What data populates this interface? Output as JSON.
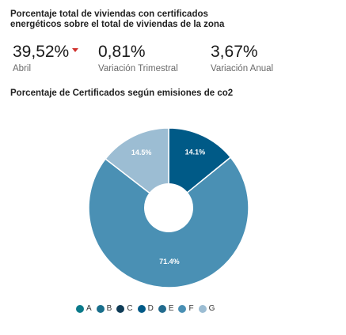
{
  "header": {
    "title": "Porcentaje total de viviendas con certificados energéticos sobre el total de viviendas de la zona"
  },
  "kpis": [
    {
      "value": "39,52%",
      "label": "Abril",
      "trend": "down"
    },
    {
      "value": "0,81%",
      "label": "Variación Trimestral"
    },
    {
      "value": "3,67%",
      "label": "Variación Anual"
    }
  ],
  "colors": {
    "A": "#0b7a8a",
    "B": "#1a6f8c",
    "C": "#0f3c57",
    "D": "#005a87",
    "E": "#226b8e",
    "F": "#4a90b4",
    "G": "#9cbdd3"
  },
  "chart_data": {
    "type": "pie",
    "title": "Porcentaje de Certificados según emisiones de co2",
    "donut": true,
    "slices": [
      {
        "name": "A",
        "value": 0
      },
      {
        "name": "B",
        "value": 0
      },
      {
        "name": "C",
        "value": 0
      },
      {
        "name": "D",
        "value": 14.1,
        "label": "14.1%"
      },
      {
        "name": "E",
        "value": 0
      },
      {
        "name": "F",
        "value": 71.4,
        "label": "71.4%"
      },
      {
        "name": "G",
        "value": 14.5,
        "label": "14.5%"
      }
    ],
    "legend": [
      "A",
      "B",
      "C",
      "D",
      "E",
      "F",
      "G"
    ],
    "legend_position": "bottom"
  }
}
